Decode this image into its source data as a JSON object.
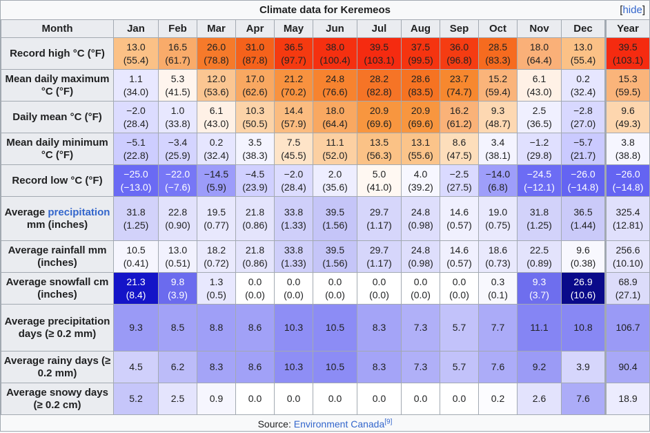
{
  "caption": "Climate data for Keremeos",
  "hide_label": "hide",
  "header": {
    "month_label": "Month",
    "months": [
      "Jan",
      "Feb",
      "Mar",
      "Apr",
      "May",
      "Jun",
      "Jul",
      "Aug",
      "Sep",
      "Oct",
      "Nov",
      "Dec"
    ],
    "year_label": "Year"
  },
  "rows": [
    {
      "key": "record-high",
      "label": "Record high °C (°F)",
      "cells": [
        [
          "13.0",
          "(55.4)",
          "#fbc186"
        ],
        [
          "16.5",
          "(61.7)",
          "#f9ab6a"
        ],
        [
          "26.0",
          "(78.8)",
          "#f67a2a"
        ],
        [
          "31.0",
          "(87.8)",
          "#f5621b"
        ],
        [
          "36.5",
          "(97.7)",
          "#f53a10"
        ],
        [
          "38.0",
          "(100.4)",
          "#f53010"
        ],
        [
          "39.5",
          "(103.1)",
          "#f52b10"
        ],
        [
          "37.5",
          "(99.5)",
          "#f53410"
        ],
        [
          "36.0",
          "(96.8)",
          "#f53c12"
        ],
        [
          "28.5",
          "(83.3)",
          "#f66b1f"
        ],
        [
          "18.0",
          "(64.4)",
          "#fab078"
        ],
        [
          "13.0",
          "(55.4)",
          "#fbc186"
        ],
        [
          "39.5",
          "(103.1)",
          "#f52b10"
        ]
      ]
    },
    {
      "key": "mean-max",
      "label": "Mean daily maximum °C (°F)",
      "cells": [
        [
          "1.1",
          "(34.0)",
          "#e8e8ff"
        ],
        [
          "5.3",
          "(41.5)",
          "#fff5ee"
        ],
        [
          "12.0",
          "(53.6)",
          "#fbc692"
        ],
        [
          "17.0",
          "(62.6)",
          "#f9a861"
        ],
        [
          "21.2",
          "(70.2)",
          "#f8923f"
        ],
        [
          "24.8",
          "(76.6)",
          "#f7832f"
        ],
        [
          "28.2",
          "(82.8)",
          "#f67426"
        ],
        [
          "28.6",
          "(83.5)",
          "#f67322"
        ],
        [
          "23.7",
          "(74.7)",
          "#f7882f"
        ],
        [
          "15.2",
          "(59.4)",
          "#fab47a"
        ],
        [
          "6.1",
          "(43.0)",
          "#fff1e6"
        ],
        [
          "0.2",
          "(32.4)",
          "#e6e6ff"
        ],
        [
          "15.3",
          "(59.5)",
          "#fab47a"
        ]
      ]
    },
    {
      "key": "daily-mean",
      "label": "Daily mean °C (°F)",
      "cells": [
        [
          "−2.0",
          "(28.4)",
          "#dcdcff"
        ],
        [
          "1.0",
          "(33.8)",
          "#e8e8ff"
        ],
        [
          "6.1",
          "(43.0)",
          "#fff1e6"
        ],
        [
          "10.3",
          "(50.5)",
          "#fcd3a8"
        ],
        [
          "14.4",
          "(57.9)",
          "#fbbc80"
        ],
        [
          "18.0",
          "(64.4)",
          "#f9a861"
        ],
        [
          "20.9",
          "(69.6)",
          "#f8963f"
        ],
        [
          "20.9",
          "(69.6)",
          "#f8963f"
        ],
        [
          "16.2",
          "(61.2)",
          "#fab278"
        ],
        [
          "9.3",
          "(48.7)",
          "#fdd8b2"
        ],
        [
          "2.5",
          "(36.5)",
          "#f0f0ff"
        ],
        [
          "−2.8",
          "(27.0)",
          "#d8d8ff"
        ],
        [
          "9.6",
          "(49.3)",
          "#fdd6ae"
        ]
      ]
    },
    {
      "key": "mean-min",
      "label": "Mean daily minimum °C (°F)",
      "cells": [
        [
          "−5.1",
          "(22.8)",
          "#cdcdff"
        ],
        [
          "−3.4",
          "(25.9)",
          "#d4d4ff"
        ],
        [
          "0.2",
          "(32.4)",
          "#e6e6ff"
        ],
        [
          "3.5",
          "(38.3)",
          "#f4f4ff"
        ],
        [
          "7.5",
          "(45.5)",
          "#fee4c8"
        ],
        [
          "11.1",
          "(52.0)",
          "#fcd0a2"
        ],
        [
          "13.5",
          "(56.3)",
          "#fbc286"
        ],
        [
          "13.1",
          "(55.6)",
          "#fbc48a"
        ],
        [
          "8.6",
          "(47.5)",
          "#fddebb"
        ],
        [
          "3.4",
          "(38.1)",
          "#f4f4ff"
        ],
        [
          "−1.2",
          "(29.8)",
          "#e0e0ff"
        ],
        [
          "−5.7",
          "(21.7)",
          "#cacaff"
        ],
        [
          "3.8",
          "(38.8)",
          "#f6f6ff"
        ]
      ]
    },
    {
      "key": "record-low",
      "label": "Record low °C (°F)",
      "cells": [
        [
          "−25.0",
          "(−13.0)",
          "#6a6af4"
        ],
        [
          "−22.0",
          "(−7.6)",
          "#7777f6"
        ],
        [
          "−14.5",
          "(5.9)",
          "#9c9cfa"
        ],
        [
          "−4.5",
          "(23.9)",
          "#d0d0ff"
        ],
        [
          "−2.0",
          "(28.4)",
          "#dcdcff"
        ],
        [
          "2.0",
          "(35.6)",
          "#eeeeff"
        ],
        [
          "5.0",
          "(41.0)",
          "#fff8f2"
        ],
        [
          "4.0",
          "(39.2)",
          "#f7f7ff"
        ],
        [
          "−2.5",
          "(27.5)",
          "#dadaff"
        ],
        [
          "−14.0",
          "(6.8)",
          "#9e9efa"
        ],
        [
          "−24.5",
          "(−12.1)",
          "#6c6cf4"
        ],
        [
          "−26.0",
          "(−14.8)",
          "#6464f2"
        ],
        [
          "−26.0",
          "(−14.8)",
          "#6464f2"
        ]
      ]
    },
    {
      "key": "avg-precip",
      "label": "Average precipitation mm (inches)",
      "link": "precipitation",
      "cells": [
        [
          "31.8",
          "(1.25)",
          "#d2d2fa"
        ],
        [
          "22.8",
          "(0.90)",
          "#e2e2fc"
        ],
        [
          "19.5",
          "(0.77)",
          "#e8e8fd"
        ],
        [
          "21.8",
          "(0.86)",
          "#e4e4fc"
        ],
        [
          "33.8",
          "(1.33)",
          "#cfcffa"
        ],
        [
          "39.5",
          "(1.56)",
          "#c5c5f8"
        ],
        [
          "29.7",
          "(1.17)",
          "#d6d6fb"
        ],
        [
          "24.8",
          "(0.98)",
          "#dedefc"
        ],
        [
          "14.6",
          "(0.57)",
          "#f0f0fe"
        ],
        [
          "19.0",
          "(0.75)",
          "#e9e9fd"
        ],
        [
          "31.8",
          "(1.25)",
          "#d2d2fa"
        ],
        [
          "36.5",
          "(1.44)",
          "#cacaf9"
        ],
        [
          "325.4",
          "(12.81)",
          "#e0e0fc"
        ]
      ]
    },
    {
      "key": "avg-rain",
      "label": "Average rainfall mm (inches)",
      "cells": [
        [
          "10.5",
          "(0.41)",
          "#f6f6fe"
        ],
        [
          "13.0",
          "(0.51)",
          "#f2f2fe"
        ],
        [
          "18.2",
          "(0.72)",
          "#eaeafd"
        ],
        [
          "21.8",
          "(0.86)",
          "#e4e4fc"
        ],
        [
          "33.8",
          "(1.33)",
          "#cfcffa"
        ],
        [
          "39.5",
          "(1.56)",
          "#c5c5f8"
        ],
        [
          "29.7",
          "(1.17)",
          "#d6d6fb"
        ],
        [
          "24.8",
          "(0.98)",
          "#dedefc"
        ],
        [
          "14.6",
          "(0.57)",
          "#f0f0fe"
        ],
        [
          "18.6",
          "(0.73)",
          "#e9e9fd"
        ],
        [
          "22.5",
          "(0.89)",
          "#e3e3fc"
        ],
        [
          "9.6",
          "(0.38)",
          "#f8f8fe"
        ],
        [
          "256.6",
          "(10.10)",
          "#e6e6fc"
        ]
      ]
    },
    {
      "key": "avg-snow",
      "label": "Average snowfall cm (inches)",
      "cells": [
        [
          "21.3",
          "(8.4)",
          "#1414c8"
        ],
        [
          "9.8",
          "(3.9)",
          "#6b6bee"
        ],
        [
          "1.3",
          "(0.5)",
          "#e8e8fe"
        ],
        [
          "0.0",
          "(0.0)",
          "#ffffff"
        ],
        [
          "0.0",
          "(0.0)",
          "#ffffff"
        ],
        [
          "0.0",
          "(0.0)",
          "#ffffff"
        ],
        [
          "0.0",
          "(0.0)",
          "#ffffff"
        ],
        [
          "0.0",
          "(0.0)",
          "#ffffff"
        ],
        [
          "0.0",
          "(0.0)",
          "#ffffff"
        ],
        [
          "0.3",
          "(0.1)",
          "#f8f8fe"
        ],
        [
          "9.3",
          "(3.7)",
          "#6e6eee"
        ],
        [
          "26.9",
          "(10.6)",
          "#0a0a8a"
        ],
        [
          "68.9",
          "(27.1)",
          "#dcdcfa"
        ]
      ]
    },
    {
      "key": "precip-days",
      "label": "Average precipitation days (≥ 0.2 mm)",
      "cells": [
        [
          "9.3",
          "",
          "#9a9af6"
        ],
        [
          "8.5",
          "",
          "#a2a2f7"
        ],
        [
          "8.8",
          "",
          "#9f9ff7"
        ],
        [
          "8.6",
          "",
          "#a1a1f7"
        ],
        [
          "10.3",
          "",
          "#8e8ef5"
        ],
        [
          "10.5",
          "",
          "#8c8cf5"
        ],
        [
          "8.3",
          "",
          "#a4a4f7"
        ],
        [
          "7.3",
          "",
          "#b0b0f8"
        ],
        [
          "5.7",
          "",
          "#c2c2fa"
        ],
        [
          "7.7",
          "",
          "#ababf8"
        ],
        [
          "11.1",
          "",
          "#8585f4"
        ],
        [
          "10.8",
          "",
          "#8888f4"
        ],
        [
          "106.7",
          "",
          "#9a9af6"
        ]
      ]
    },
    {
      "key": "rainy-days",
      "label": "Average rainy days (≥ 0.2 mm)",
      "cells": [
        [
          "4.5",
          "",
          "#d0d0fb"
        ],
        [
          "6.2",
          "",
          "#bcbcf9"
        ],
        [
          "8.3",
          "",
          "#a4a4f7"
        ],
        [
          "8.6",
          "",
          "#a1a1f7"
        ],
        [
          "10.3",
          "",
          "#8e8ef5"
        ],
        [
          "10.5",
          "",
          "#8c8cf5"
        ],
        [
          "8.3",
          "",
          "#a4a4f7"
        ],
        [
          "7.3",
          "",
          "#b0b0f8"
        ],
        [
          "5.7",
          "",
          "#c2c2fa"
        ],
        [
          "7.6",
          "",
          "#acacf8"
        ],
        [
          "9.2",
          "",
          "#9b9bf6"
        ],
        [
          "3.9",
          "",
          "#d6d6fc"
        ],
        [
          "90.4",
          "",
          "#a8a8f7"
        ]
      ]
    },
    {
      "key": "snowy-days",
      "label": "Average snowy days (≥ 0.2 cm)",
      "cells": [
        [
          "5.2",
          "",
          "#c6c6fa"
        ],
        [
          "2.5",
          "",
          "#e4e4fd"
        ],
        [
          "0.9",
          "",
          "#f6f6fe"
        ],
        [
          "0.0",
          "",
          "#ffffff"
        ],
        [
          "0.0",
          "",
          "#ffffff"
        ],
        [
          "0.0",
          "",
          "#ffffff"
        ],
        [
          "0.0",
          "",
          "#ffffff"
        ],
        [
          "0.0",
          "",
          "#ffffff"
        ],
        [
          "0.0",
          "",
          "#ffffff"
        ],
        [
          "0.2",
          "",
          "#fcfcff"
        ],
        [
          "2.6",
          "",
          "#e3e3fd"
        ],
        [
          "7.6",
          "",
          "#acacf8"
        ],
        [
          "18.9",
          "",
          "#ececfe"
        ]
      ]
    }
  ],
  "source": {
    "prefix": "Source: ",
    "link": "Environment Canada",
    "ref": "[9]"
  }
}
